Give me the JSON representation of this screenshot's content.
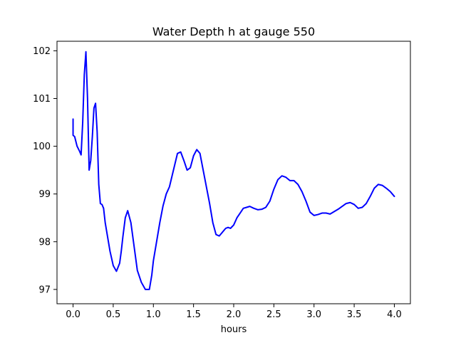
{
  "chart_data": {
    "type": "line",
    "title": "Water Depth h at gauge 550",
    "xlabel": "hours",
    "ylabel": "",
    "xlim": [
      -0.2,
      4.2
    ],
    "ylim": [
      96.7,
      102.2
    ],
    "xticks": [
      0.0,
      0.5,
      1.0,
      1.5,
      2.0,
      2.5,
      3.0,
      3.5,
      4.0
    ],
    "xtick_labels": [
      "0.0",
      "0.5",
      "1.0",
      "1.5",
      "2.0",
      "2.5",
      "3.0",
      "3.5",
      "4.0"
    ],
    "yticks": [
      97,
      98,
      99,
      100,
      101,
      102
    ],
    "ytick_labels": [
      "97",
      "98",
      "99",
      "100",
      "101",
      "102"
    ],
    "grid": false,
    "legend": "none",
    "series": [
      {
        "color": "#0000ff",
        "x": [
          0.0,
          0.0,
          0.02,
          0.05,
          0.08,
          0.1,
          0.12,
          0.14,
          0.16,
          0.18,
          0.2,
          0.22,
          0.24,
          0.26,
          0.28,
          0.3,
          0.32,
          0.34,
          0.36,
          0.38,
          0.4,
          0.42,
          0.44,
          0.46,
          0.5,
          0.54,
          0.58,
          0.6,
          0.62,
          0.65,
          0.68,
          0.72,
          0.76,
          0.8,
          0.85,
          0.9,
          0.95,
          0.98,
          1.0,
          1.04,
          1.08,
          1.12,
          1.16,
          1.2,
          1.25,
          1.3,
          1.34,
          1.38,
          1.42,
          1.46,
          1.5,
          1.54,
          1.58,
          1.62,
          1.66,
          1.7,
          1.74,
          1.78,
          1.82,
          1.86,
          1.9,
          1.93,
          1.96,
          2.0,
          2.04,
          2.08,
          2.12,
          2.16,
          2.2,
          2.25,
          2.3,
          2.35,
          2.4,
          2.45,
          2.5,
          2.55,
          2.6,
          2.65,
          2.7,
          2.75,
          2.8,
          2.85,
          2.9,
          2.95,
          3.0,
          3.05,
          3.1,
          3.15,
          3.2,
          3.3,
          3.4,
          3.45,
          3.5,
          3.55,
          3.6,
          3.65,
          3.7,
          3.75,
          3.8,
          3.85,
          3.9,
          3.95,
          4.0
        ],
        "y": [
          100.57,
          100.23,
          100.2,
          100.0,
          99.9,
          99.82,
          100.5,
          101.5,
          101.98,
          101.0,
          99.5,
          99.7,
          100.2,
          100.8,
          100.9,
          100.3,
          99.2,
          98.8,
          98.78,
          98.7,
          98.4,
          98.2,
          98.0,
          97.8,
          97.5,
          97.38,
          97.55,
          97.8,
          98.1,
          98.5,
          98.65,
          98.4,
          97.9,
          97.4,
          97.15,
          97.0,
          97.0,
          97.3,
          97.6,
          98.0,
          98.4,
          98.75,
          99.0,
          99.15,
          99.5,
          99.85,
          99.88,
          99.7,
          99.5,
          99.55,
          99.8,
          99.93,
          99.85,
          99.5,
          99.15,
          98.8,
          98.4,
          98.15,
          98.12,
          98.2,
          98.28,
          98.3,
          98.28,
          98.35,
          98.5,
          98.6,
          98.7,
          98.72,
          98.74,
          98.7,
          98.67,
          98.68,
          98.72,
          98.85,
          99.1,
          99.3,
          99.38,
          99.35,
          99.28,
          99.28,
          99.2,
          99.05,
          98.85,
          98.62,
          98.55,
          98.57,
          98.6,
          98.6,
          98.58,
          98.68,
          98.8,
          98.82,
          98.78,
          98.7,
          98.72,
          98.8,
          98.95,
          99.12,
          99.2,
          99.18,
          99.12,
          99.05,
          98.95
        ]
      }
    ]
  }
}
